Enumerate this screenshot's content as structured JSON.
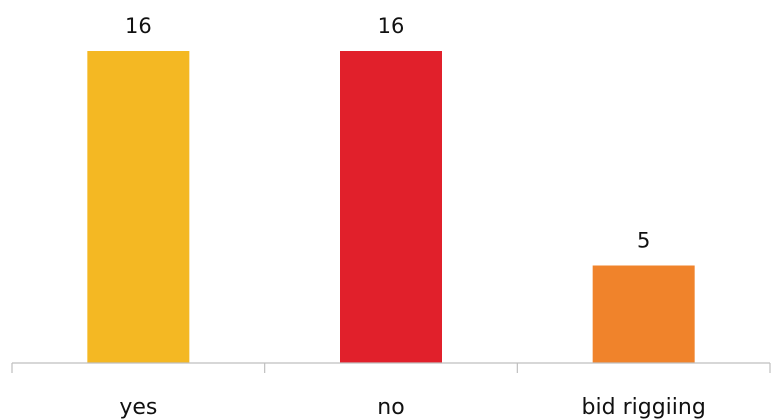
{
  "chart_data": {
    "type": "bar",
    "title": "",
    "xlabel": "",
    "ylabel": "",
    "categories": [
      "yes",
      "no",
      "bid riggiing"
    ],
    "values": [
      16,
      16,
      5
    ],
    "colors": [
      "#F4B823",
      "#E1202B",
      "#F0832B"
    ],
    "ylim": [
      0,
      16
    ],
    "grid": false,
    "legend": "none",
    "data_labels": true
  }
}
